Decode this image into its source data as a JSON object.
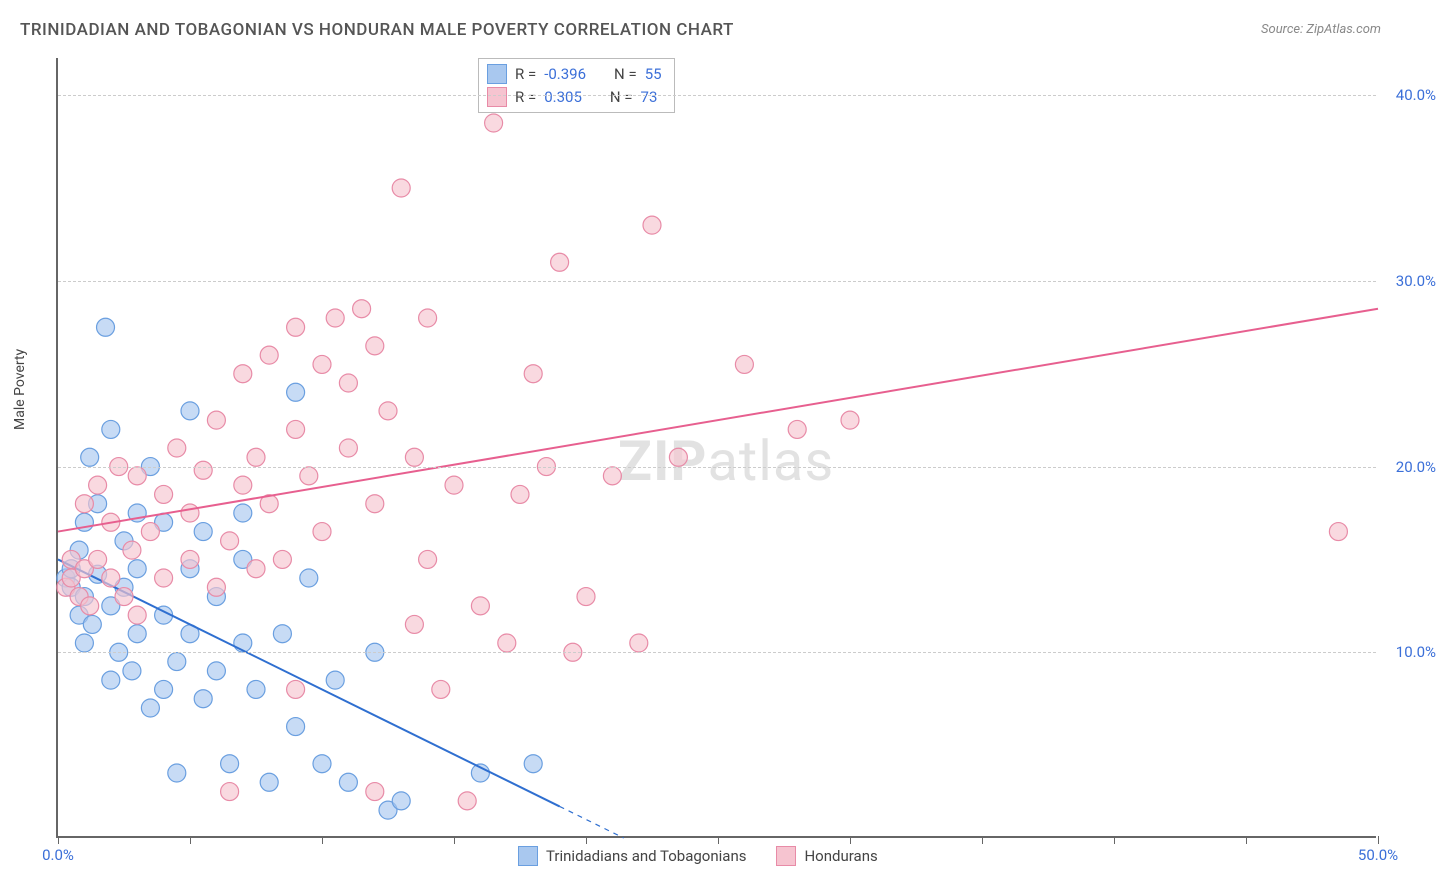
{
  "title": "TRINIDADIAN AND TOBAGONIAN VS HONDURAN MALE POVERTY CORRELATION CHART",
  "source_label": "Source: ZipAtlas.com",
  "y_axis_label": "Male Poverty",
  "watermark": {
    "bold": "ZIP",
    "rest": "atlas"
  },
  "chart": {
    "type": "scatter",
    "xlim": [
      0,
      50
    ],
    "ylim": [
      0,
      42
    ],
    "x_ticks": [
      0,
      5,
      10,
      15,
      20,
      25,
      30,
      35,
      40,
      45,
      50
    ],
    "x_tick_labels": {
      "0": "0.0%",
      "50": "50.0%"
    },
    "y_gridlines": [
      10,
      20,
      30,
      40
    ],
    "y_tick_labels": {
      "10": "10.0%",
      "20": "20.0%",
      "30": "30.0%",
      "40": "40.0%"
    },
    "background_color": "#ffffff",
    "grid_color": "#cccccc",
    "axis_color": "#666666",
    "tick_label_color": "#3b6fd8"
  },
  "series": [
    {
      "id": "trinidad",
      "label": "Trinidadians and Tobagonians",
      "marker_fill": "#a9c8ef",
      "marker_stroke": "#6a9fe0",
      "marker_opacity": 0.65,
      "marker_radius": 9,
      "line_color": "#2f6fd0",
      "line_width": 2,
      "R": "-0.396",
      "N": "55",
      "trend": {
        "x1": 0,
        "y1": 15.0,
        "x2": 20,
        "y2": 1.0,
        "dash_after_x": 19
      },
      "points": [
        [
          0.3,
          14.0
        ],
        [
          0.5,
          13.5
        ],
        [
          0.5,
          14.5
        ],
        [
          0.8,
          12.0
        ],
        [
          0.8,
          15.5
        ],
        [
          1.0,
          10.5
        ],
        [
          1.0,
          13.0
        ],
        [
          1.0,
          17.0
        ],
        [
          1.2,
          20.5
        ],
        [
          1.3,
          11.5
        ],
        [
          1.5,
          14.2
        ],
        [
          1.5,
          18.0
        ],
        [
          1.8,
          27.5
        ],
        [
          2.0,
          8.5
        ],
        [
          2.0,
          12.5
        ],
        [
          2.0,
          22.0
        ],
        [
          2.3,
          10.0
        ],
        [
          2.5,
          13.5
        ],
        [
          2.5,
          16.0
        ],
        [
          2.8,
          9.0
        ],
        [
          3.0,
          11.0
        ],
        [
          3.0,
          14.5
        ],
        [
          3.0,
          17.5
        ],
        [
          3.5,
          20.0
        ],
        [
          3.5,
          7.0
        ],
        [
          4.0,
          8.0
        ],
        [
          4.0,
          12.0
        ],
        [
          4.0,
          17.0
        ],
        [
          4.5,
          3.5
        ],
        [
          4.5,
          9.5
        ],
        [
          5.0,
          23.0
        ],
        [
          5.0,
          11.0
        ],
        [
          5.0,
          14.5
        ],
        [
          5.5,
          7.5
        ],
        [
          5.5,
          16.5
        ],
        [
          6.0,
          9.0
        ],
        [
          6.0,
          13.0
        ],
        [
          6.5,
          4.0
        ],
        [
          7.0,
          10.5
        ],
        [
          7.0,
          15.0
        ],
        [
          7.0,
          17.5
        ],
        [
          7.5,
          8.0
        ],
        [
          8.0,
          3.0
        ],
        [
          8.5,
          11.0
        ],
        [
          9.0,
          6.0
        ],
        [
          9.0,
          24.0
        ],
        [
          9.5,
          14.0
        ],
        [
          10.0,
          4.0
        ],
        [
          10.5,
          8.5
        ],
        [
          11.0,
          3.0
        ],
        [
          12.0,
          10.0
        ],
        [
          12.5,
          1.5
        ],
        [
          13.0,
          2.0
        ],
        [
          16.0,
          3.5
        ],
        [
          18.0,
          4.0
        ]
      ]
    },
    {
      "id": "honduran",
      "label": "Hondurans",
      "marker_fill": "#f6c4d0",
      "marker_stroke": "#e88ba7",
      "marker_opacity": 0.65,
      "marker_radius": 9,
      "line_color": "#e75f8f",
      "line_width": 2,
      "R": "0.305",
      "N": "73",
      "trend": {
        "x1": 0,
        "y1": 16.5,
        "x2": 50,
        "y2": 28.5
      },
      "points": [
        [
          0.3,
          13.5
        ],
        [
          0.5,
          14.0
        ],
        [
          0.5,
          15.0
        ],
        [
          0.8,
          13.0
        ],
        [
          1.0,
          14.5
        ],
        [
          1.0,
          18.0
        ],
        [
          1.2,
          12.5
        ],
        [
          1.5,
          15.0
        ],
        [
          1.5,
          19.0
        ],
        [
          2.0,
          14.0
        ],
        [
          2.0,
          17.0
        ],
        [
          2.3,
          20.0
        ],
        [
          2.5,
          13.0
        ],
        [
          2.8,
          15.5
        ],
        [
          3.0,
          12.0
        ],
        [
          3.0,
          19.5
        ],
        [
          3.5,
          16.5
        ],
        [
          4.0,
          14.0
        ],
        [
          4.0,
          18.5
        ],
        [
          4.5,
          21.0
        ],
        [
          5.0,
          15.0
        ],
        [
          5.0,
          17.5
        ],
        [
          5.5,
          19.8
        ],
        [
          6.0,
          13.5
        ],
        [
          6.0,
          22.5
        ],
        [
          6.5,
          16.0
        ],
        [
          7.0,
          19.0
        ],
        [
          7.0,
          25.0
        ],
        [
          7.5,
          14.5
        ],
        [
          7.5,
          20.5
        ],
        [
          8.0,
          18.0
        ],
        [
          8.0,
          26.0
        ],
        [
          8.5,
          15.0
        ],
        [
          9.0,
          22.0
        ],
        [
          9.0,
          27.5
        ],
        [
          9.5,
          19.5
        ],
        [
          10.0,
          16.5
        ],
        [
          10.0,
          25.5
        ],
        [
          10.5,
          28.0
        ],
        [
          11.0,
          21.0
        ],
        [
          11.0,
          24.5
        ],
        [
          11.5,
          28.5
        ],
        [
          12.0,
          18.0
        ],
        [
          12.0,
          26.5
        ],
        [
          12.5,
          23.0
        ],
        [
          13.0,
          35.0
        ],
        [
          13.5,
          20.5
        ],
        [
          14.0,
          15.0
        ],
        [
          14.0,
          28.0
        ],
        [
          14.5,
          8.0
        ],
        [
          15.0,
          19.0
        ],
        [
          16.0,
          12.5
        ],
        [
          16.5,
          38.5
        ],
        [
          17.0,
          10.5
        ],
        [
          17.5,
          18.5
        ],
        [
          18.0,
          25.0
        ],
        [
          18.5,
          20.0
        ],
        [
          19.0,
          31.0
        ],
        [
          19.5,
          10.0
        ],
        [
          20.0,
          13.0
        ],
        [
          21.0,
          19.5
        ],
        [
          22.0,
          10.5
        ],
        [
          22.5,
          33.0
        ],
        [
          23.5,
          20.5
        ],
        [
          26.0,
          25.5
        ],
        [
          28.0,
          22.0
        ],
        [
          30.0,
          22.5
        ],
        [
          9.0,
          8.0
        ],
        [
          12.0,
          2.5
        ],
        [
          13.5,
          11.5
        ],
        [
          15.5,
          2.0
        ],
        [
          48.5,
          16.5
        ],
        [
          6.5,
          2.5
        ]
      ]
    }
  ],
  "stats_box": {
    "rows": [
      {
        "swatch_fill": "#a9c8ef",
        "swatch_stroke": "#6a9fe0",
        "r_label": "R =",
        "r_val": "-0.396",
        "n_label": "N =",
        "n_val": "55"
      },
      {
        "swatch_fill": "#f6c4d0",
        "swatch_stroke": "#e88ba7",
        "r_label": "R =",
        "r_val": " 0.305",
        "n_label": "N =",
        "n_val": "73"
      }
    ]
  },
  "bottom_legend": [
    {
      "swatch_fill": "#a9c8ef",
      "swatch_stroke": "#6a9fe0",
      "label": "Trinidadians and Tobagonians"
    },
    {
      "swatch_fill": "#f6c4d0",
      "swatch_stroke": "#e88ba7",
      "label": "Hondurans"
    }
  ]
}
